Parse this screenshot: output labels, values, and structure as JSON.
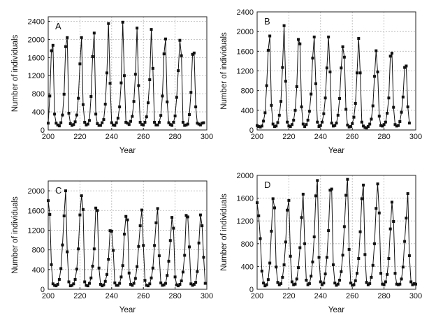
{
  "chart_data": [
    {
      "type": "line",
      "panel_label": "A",
      "xlabel": "Year",
      "ylabel": "Number of individuals",
      "xlim": [
        200,
        300
      ],
      "ylim": [
        0,
        2500
      ],
      "xticks": [
        200,
        220,
        240,
        260,
        280,
        300
      ],
      "yticks": [
        0,
        400,
        800,
        1200,
        1600,
        2000,
        2400
      ],
      "grid": true,
      "x_start": 200,
      "values": [
        150,
        750,
        1750,
        1870,
        350,
        150,
        110,
        90,
        160,
        330,
        790,
        1840,
        2040,
        370,
        140,
        100,
        120,
        180,
        330,
        700,
        1460,
        2040,
        560,
        170,
        110,
        130,
        210,
        740,
        1620,
        2140,
        350,
        140,
        100,
        100,
        160,
        230,
        570,
        1260,
        2350,
        1030,
        160,
        110,
        100,
        160,
        260,
        510,
        1040,
        2380,
        1200,
        170,
        150,
        120,
        190,
        300,
        630,
        1230,
        2250,
        980,
        170,
        120,
        110,
        170,
        290,
        600,
        1110,
        2220,
        1360,
        170,
        110,
        110,
        170,
        320,
        750,
        1680,
        2010,
        620,
        160,
        120,
        100,
        170,
        310,
        720,
        1310,
        1980,
        1640,
        170,
        100,
        110,
        130,
        340,
        830,
        1670,
        1700,
        510,
        150,
        130,
        110,
        150,
        160
      ]
    },
    {
      "type": "line",
      "panel_label": "B",
      "xlabel": "Year",
      "ylabel": "Number of individuals",
      "xlim": [
        200,
        300
      ],
      "ylim": [
        0,
        2400
      ],
      "xticks": [
        200,
        220,
        240,
        260,
        280,
        300
      ],
      "yticks": [
        0,
        400,
        800,
        1200,
        1600,
        2000,
        2400
      ],
      "grid": true,
      "x_start": 200,
      "values": [
        90,
        70,
        60,
        80,
        180,
        350,
        900,
        1620,
        1910,
        500,
        120,
        70,
        80,
        150,
        300,
        580,
        1270,
        2120,
        990,
        160,
        80,
        70,
        110,
        200,
        400,
        880,
        1840,
        1750,
        470,
        120,
        70,
        110,
        200,
        380,
        730,
        1460,
        1890,
        940,
        160,
        70,
        90,
        160,
        330,
        650,
        1260,
        1890,
        1180,
        140,
        80,
        90,
        140,
        300,
        640,
        1260,
        1690,
        1480,
        420,
        100,
        60,
        70,
        130,
        260,
        540,
        1160,
        1860,
        1160,
        160,
        80,
        50,
        40,
        70,
        120,
        220,
        490,
        1090,
        1610,
        1180,
        280,
        90,
        80,
        110,
        160,
        340,
        650,
        1500,
        1560,
        460,
        110,
        80,
        90,
        170,
        360,
        670,
        1270,
        1300,
        470,
        140
      ]
    },
    {
      "type": "line",
      "panel_label": "C",
      "xlabel": "Year",
      "ylabel": "Number of individuals",
      "xlim": [
        200,
        300
      ],
      "ylim": [
        0,
        2200
      ],
      "xticks": [
        200,
        220,
        240,
        260,
        280,
        300
      ],
      "yticks": [
        0,
        400,
        800,
        1200,
        1600,
        2000
      ],
      "grid": true,
      "x_start": 200,
      "values": [
        1800,
        1520,
        500,
        110,
        80,
        70,
        100,
        200,
        420,
        900,
        1490,
        2000,
        760,
        150,
        70,
        80,
        110,
        200,
        410,
        820,
        1510,
        1900,
        1620,
        150,
        80,
        70,
        120,
        230,
        470,
        820,
        1650,
        1600,
        430,
        100,
        70,
        90,
        160,
        300,
        610,
        1190,
        1180,
        790,
        130,
        80,
        80,
        120,
        250,
        480,
        1120,
        1480,
        1410,
        330,
        100,
        80,
        120,
        220,
        460,
        870,
        1290,
        1610,
        890,
        180,
        80,
        70,
        110,
        230,
        430,
        890,
        1350,
        1640,
        680,
        130,
        80,
        90,
        120,
        280,
        570,
        990,
        1460,
        1240,
        250,
        90,
        70,
        100,
        170,
        350,
        690,
        1500,
        1470,
        860,
        110,
        80,
        100,
        140,
        360,
        940,
        1510,
        1290,
        650,
        120
      ]
    },
    {
      "type": "line",
      "panel_label": "D",
      "xlabel": "Year",
      "ylabel": "Number of individuals",
      "xlim": [
        200,
        300
      ],
      "ylim": [
        0,
        2000
      ],
      "xticks": [
        200,
        220,
        240,
        260,
        280,
        300
      ],
      "yticks": [
        0,
        400,
        800,
        1200,
        1600,
        2000
      ],
      "grid": true,
      "x_start": 200,
      "values": [
        1520,
        1290,
        890,
        320,
        110,
        60,
        80,
        170,
        460,
        1020,
        1590,
        1430,
        390,
        120,
        80,
        100,
        210,
        430,
        830,
        1390,
        1560,
        580,
        130,
        80,
        90,
        180,
        380,
        730,
        1260,
        1670,
        800,
        160,
        80,
        100,
        230,
        480,
        920,
        1640,
        1910,
        560,
        130,
        80,
        110,
        270,
        560,
        1030,
        1740,
        1760,
        430,
        110,
        70,
        90,
        160,
        310,
        600,
        1100,
        1650,
        1930,
        700,
        110,
        70,
        80,
        150,
        280,
        540,
        1010,
        1590,
        1830,
        610,
        120,
        80,
        100,
        210,
        420,
        800,
        1420,
        1850,
        1340,
        280,
        90,
        80,
        130,
        260,
        540,
        1060,
        1530,
        1190,
        280,
        90,
        80,
        90,
        180,
        390,
        840,
        1250,
        1680,
        590,
        130,
        80,
        100,
        90
      ]
    }
  ]
}
